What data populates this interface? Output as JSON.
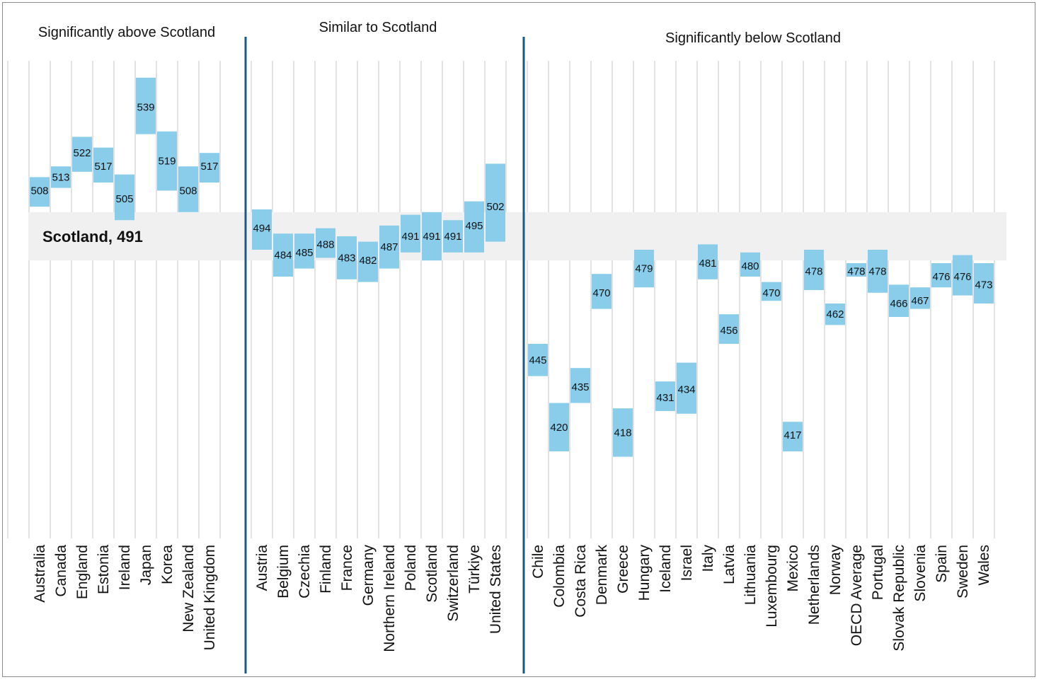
{
  "chart_data": {
    "type": "bar",
    "title": "",
    "xlabel": "",
    "ylabel": "",
    "ylim": [
      350,
      560
    ],
    "grid": true,
    "colors": {
      "box": "#89cdea",
      "divider": "#1b5a82",
      "band": "#f0f0f0",
      "gridline": "#d8d8d8"
    },
    "reference": {
      "label": "Scotland, 491",
      "value": 491,
      "band_low": 482,
      "band_high": 500
    },
    "groups": [
      {
        "title": "Significantly above Scotland",
        "categories": [
          "Australia",
          "Canada",
          "England",
          "Estonia",
          "Ireland",
          "Japan",
          "Korea",
          "New Zealand",
          "United Kingdom"
        ],
        "values": [
          508,
          513,
          522,
          517,
          505,
          539,
          519,
          508,
          517
        ],
        "low": [
          502,
          509,
          515,
          511,
          497,
          529,
          508,
          500,
          511
        ],
        "high": [
          513,
          517,
          528,
          524,
          514,
          550,
          530,
          517,
          522
        ]
      },
      {
        "title": "Similar to Scotland",
        "categories": [
          "Austria",
          "Belgium",
          "Czechia",
          "Finland",
          "France",
          "Germany",
          "Northern Ireland",
          "Poland",
          "Scotland",
          "Switzerland",
          "Türkiye",
          "United States"
        ],
        "values": [
          494,
          484,
          485,
          488,
          483,
          482,
          487,
          491,
          491,
          491,
          495,
          502
        ],
        "low": [
          486,
          476,
          479,
          483,
          475,
          474,
          479,
          485,
          482,
          485,
          485,
          489
        ],
        "high": [
          501,
          492,
          492,
          494,
          491,
          489,
          495,
          499,
          500,
          497,
          504,
          518
        ]
      },
      {
        "title": "Significantly below Scotland",
        "categories": [
          "Chile",
          "Colombia",
          "Costa Rica",
          "Denmark",
          "Greece",
          "Hungary",
          "Iceland",
          "Israel",
          "Italy",
          "Latvia",
          "Lithuania",
          "Luxembourg",
          "Mexico",
          "Netherlands",
          "Norway",
          "OECD Average",
          "Portugal",
          "Slovak Republic",
          "Slovenia",
          "Spain",
          "Sweden",
          "Wales"
        ],
        "values": [
          445,
          420,
          435,
          470,
          418,
          479,
          431,
          434,
          481,
          456,
          480,
          470,
          417,
          478,
          462,
          478,
          478,
          466,
          467,
          476,
          476,
          473
        ],
        "low": [
          439,
          411,
          429,
          464,
          409,
          472,
          426,
          425,
          475,
          451,
          476,
          467,
          411,
          471,
          458,
          476,
          470,
          461,
          464,
          472,
          469,
          466
        ],
        "high": [
          451,
          429,
          442,
          477,
          427,
          486,
          437,
          444,
          488,
          462,
          485,
          474,
          422,
          486,
          466,
          481,
          486,
          473,
          472,
          481,
          484,
          481
        ]
      }
    ]
  }
}
